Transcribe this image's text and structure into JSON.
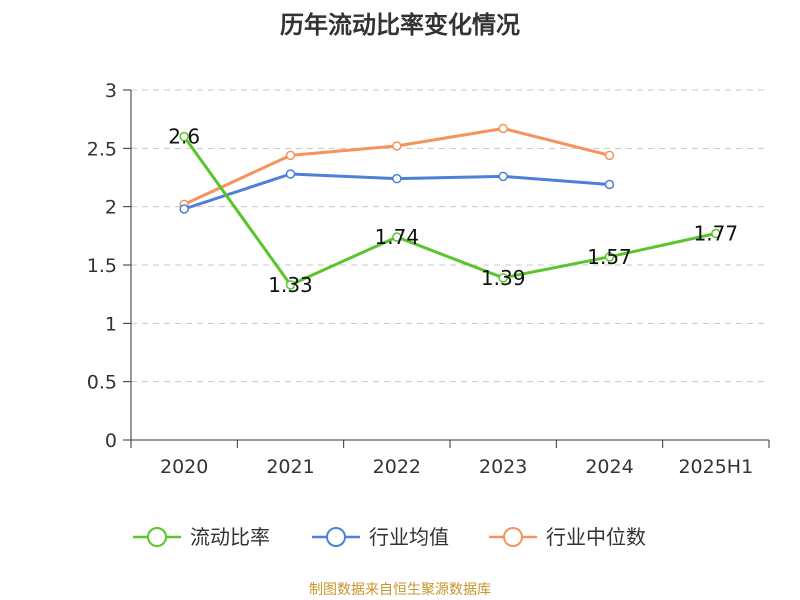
{
  "chart_data": {
    "type": "line",
    "title": "历年流动比率变化情况",
    "categories": [
      "2020",
      "2021",
      "2022",
      "2023",
      "2024",
      "2025H1"
    ],
    "y_ticks": [
      "0",
      "0.5",
      "1",
      "1.5",
      "2",
      "2.5",
      "3"
    ],
    "ylim": [
      0,
      3
    ],
    "grid": true,
    "legend_position": "bottom",
    "series": [
      {
        "name": "流动比率",
        "color": "#5bc42d",
        "values": [
          2.6,
          1.33,
          1.74,
          1.39,
          1.57,
          1.77
        ],
        "labels": [
          "2.6",
          "1.33",
          "1.74",
          "1.39",
          "1.57",
          "1.77"
        ]
      },
      {
        "name": "行业均值",
        "color": "#4e7fdb",
        "values": [
          1.98,
          2.28,
          2.24,
          2.26,
          2.19,
          null
        ]
      },
      {
        "name": "行业中位数",
        "color": "#f5935a",
        "values": [
          2.02,
          2.44,
          2.52,
          2.67,
          2.44,
          null
        ]
      }
    ],
    "source": "制图数据来自恒生聚源数据库"
  }
}
